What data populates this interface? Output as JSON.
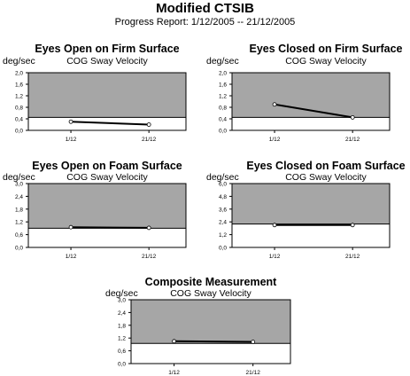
{
  "report": {
    "title": "Modified CTSIB",
    "subtitle": "Progress Report: 1/12/2005 -- 21/12/2005"
  },
  "colors": {
    "shaded": "#a6a6a6",
    "plot_bg": "#ffffff",
    "line": "#000000",
    "marker_fill": "#ffffff"
  },
  "chart_data": [
    {
      "type": "line",
      "title": "Eyes Open on Firm Surface",
      "subtitle": "COG Sway Velocity",
      "ylabel": "deg/sec",
      "categories": [
        "1/12",
        "21/12"
      ],
      "values": [
        0.3,
        0.2
      ],
      "ylim": [
        0,
        2.0
      ],
      "yticks": [
        "0,0",
        "0,4",
        "0,8",
        "1,2",
        "1,6",
        "2,0"
      ],
      "threshold": 0.45
    },
    {
      "type": "line",
      "title": "Eyes Closed on Firm Surface",
      "subtitle": "COG Sway Velocity",
      "ylabel": "deg/sec",
      "categories": [
        "1/12",
        "21/12"
      ],
      "values": [
        0.9,
        0.45
      ],
      "ylim": [
        0,
        2.0
      ],
      "yticks": [
        "0,0",
        "0,4",
        "0,8",
        "1,2",
        "1,6",
        "2,0"
      ],
      "threshold": 0.45
    },
    {
      "type": "line",
      "title": "Eyes Open on Foam Surface",
      "subtitle": "COG Sway Velocity",
      "ylabel": "deg/sec",
      "categories": [
        "1/12",
        "21/12"
      ],
      "values": [
        0.95,
        0.92
      ],
      "ylim": [
        0,
        3.0
      ],
      "yticks": [
        "0,0",
        "0,6",
        "1,2",
        "1,8",
        "2,4",
        "3,0"
      ],
      "threshold": 0.9
    },
    {
      "type": "line",
      "title": "Eyes Closed on Foam Surface",
      "subtitle": "COG Sway Velocity",
      "ylabel": "deg/sec",
      "categories": [
        "1/12",
        "21/12"
      ],
      "values": [
        2.1,
        2.1
      ],
      "ylim": [
        0,
        6.0
      ],
      "yticks": [
        "0,0",
        "1,2",
        "2,4",
        "3,6",
        "4,8",
        "6,0"
      ],
      "threshold": 2.2
    },
    {
      "type": "line",
      "title": "Composite Measurement",
      "subtitle": "COG Sway Velocity",
      "ylabel": "deg/sec",
      "categories": [
        "1/12",
        "21/12"
      ],
      "values": [
        1.05,
        1.02
      ],
      "ylim": [
        0,
        3.0
      ],
      "yticks": [
        "0,0",
        "0,6",
        "1,2",
        "1,8",
        "2,4",
        "3,0"
      ],
      "threshold": 0.95
    }
  ]
}
